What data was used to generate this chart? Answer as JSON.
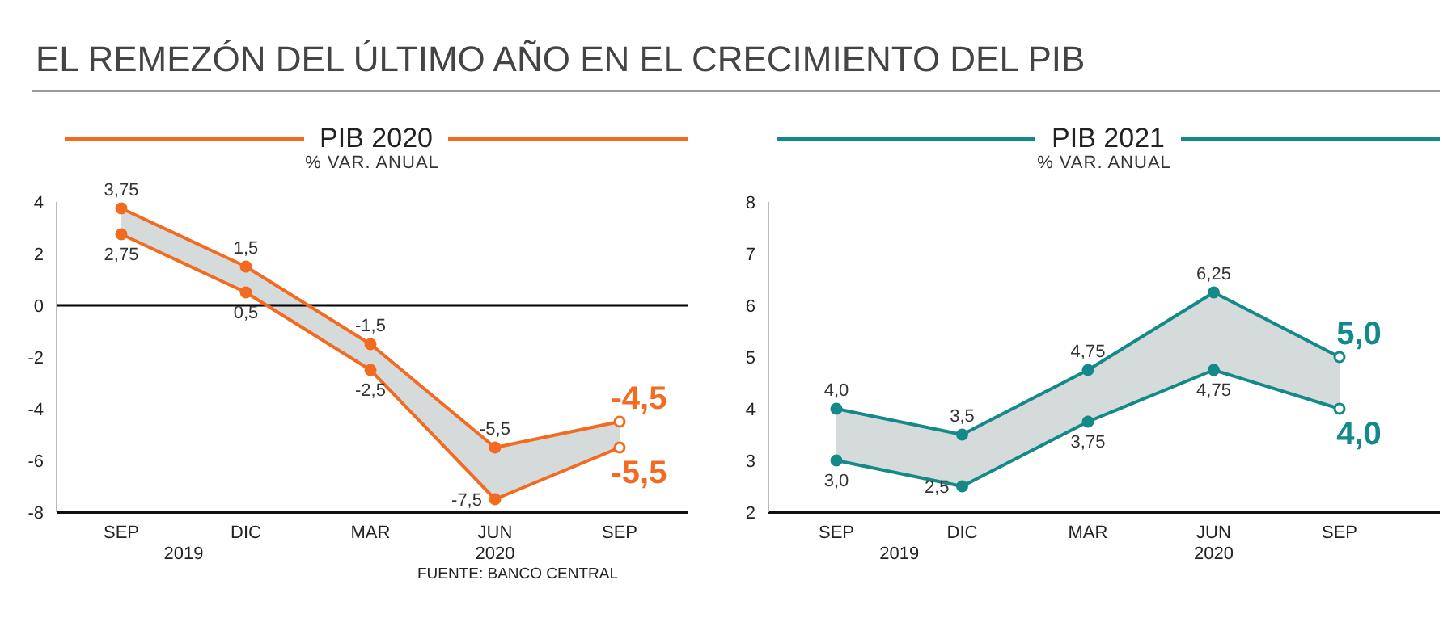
{
  "chart_data": [
    {
      "type": "line",
      "title": "EL REMEZÓN DEL ÚLTIMO AÑO EN EL CRECIMIENTO DEL PIB",
      "subtitle": "PIB 2020",
      "ylabel": "% VAR. ANUAL",
      "categories": [
        "SEP",
        "DIC",
        "MAR",
        "JUN",
        "SEP"
      ],
      "annotations": [
        "2019",
        "2020"
      ],
      "ylim": [
        -8,
        4
      ],
      "yticks": [
        -8,
        -6,
        -4,
        -2,
        0,
        2,
        4
      ],
      "grid": false,
      "legend": false,
      "marker": "circle",
      "ref_lines": [
        {
          "axis": "y",
          "value": 0,
          "color": "#000000"
        }
      ],
      "series": [
        {
          "color": "#f26b21",
          "values": [
            3.75,
            1.5,
            -1.5,
            -5.5,
            -4.5
          ],
          "value_labels": [
            "3,75",
            "1,5",
            "-1,5",
            "-5,5",
            "-4,5"
          ],
          "lower": [
            2.75,
            0.5,
            -2.5,
            -7.5,
            -5.5
          ],
          "upper": [
            3.75,
            1.5,
            -1.5,
            -5.5,
            -4.5
          ]
        },
        {
          "color": "#f26b21",
          "values": [
            2.75,
            0.5,
            -2.5,
            -7.5,
            -5.5
          ],
          "value_labels": [
            "2,75",
            "0,5",
            "-2,5",
            "-7,5",
            "-5,5"
          ]
        }
      ]
    },
    {
      "type": "line",
      "subtitle": "PIB 2021",
      "ylabel": "% VAR. ANUAL",
      "categories": [
        "SEP",
        "DIC",
        "MAR",
        "JUN",
        "SEP"
      ],
      "annotations": [
        "2019",
        "2020",
        "FUENTE: BANCO CENTRAL"
      ],
      "ylim": [
        2,
        8
      ],
      "yticks": [
        2,
        3,
        4,
        5,
        6,
        7,
        8
      ],
      "grid": false,
      "legend": false,
      "marker": "circle",
      "series": [
        {
          "color": "#13898a",
          "values": [
            4.0,
            3.5,
            4.75,
            6.25,
            5.0
          ],
          "value_labels": [
            "4,0",
            "3,5",
            "4,75",
            "6,25",
            "5,0"
          ],
          "lower": [
            3.0,
            2.5,
            3.75,
            4.75,
            4.0
          ],
          "upper": [
            4.0,
            3.5,
            4.75,
            6.25,
            5.0
          ]
        },
        {
          "color": "#13898a",
          "values": [
            3.0,
            2.5,
            3.75,
            4.75,
            4.0
          ],
          "value_labels": [
            "3,0",
            "2,5",
            "3,75",
            "4,75",
            "4,0"
          ]
        }
      ]
    }
  ]
}
